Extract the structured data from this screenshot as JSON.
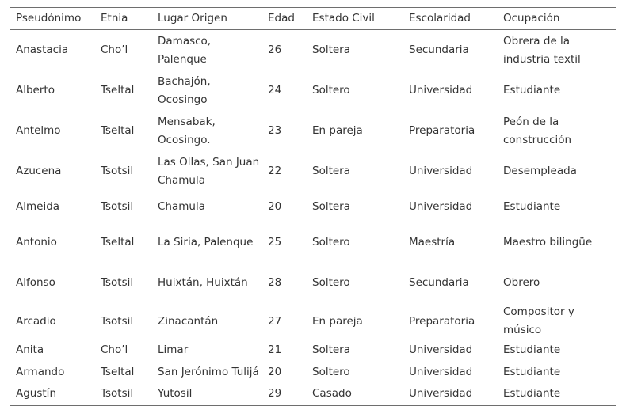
{
  "headers": [
    "Pseudónimo",
    "Etnia",
    "Lugar Origen",
    "Edad",
    "Estado Civil",
    "Escolaridad",
    "Ocupación"
  ],
  "rows": [
    {
      "seudonimo": "Anastacia",
      "etnia": "Cho’l",
      "origen": "Damasco, Palenque",
      "edad": "26",
      "estado": "Soltera",
      "escolaridad": "Secundaria",
      "ocupacion": "Obrera de la industria textil"
    },
    {
      "seudonimo": "Alberto",
      "etnia": "Tseltal",
      "origen": "Bachajón, Ocosingo",
      "edad": "24",
      "estado": "Soltero",
      "escolaridad": "Universidad",
      "ocupacion": "Estudiante"
    },
    {
      "seudonimo": "Antelmo",
      "etnia": "Tseltal",
      "origen": "Mensabak, Ocosingo.",
      "edad": "23",
      "estado": "En pareja",
      "escolaridad": "Preparatoria",
      "ocupacion": "Peón de la construcción"
    },
    {
      "seudonimo": "Azucena",
      "etnia": "Tsotsil",
      "origen": "Las Ollas, San Juan Chamula",
      "edad": "22",
      "estado": "Soltera",
      "escolaridad": "Universidad",
      "ocupacion": "Desempleada"
    },
    {
      "seudonimo": "Almeida",
      "etnia": "Tsotsil",
      "origen": "Chamula",
      "edad": "20",
      "estado": "Soltera",
      "escolaridad": "Universidad",
      "ocupacion": "Estudiante"
    },
    {
      "seudonimo": "Antonio",
      "etnia": "Tseltal",
      "origen": "La Siria, Palenque",
      "edad": "25",
      "estado": "Soltero",
      "escolaridad": "Maestría",
      "ocupacion": "Maestro bilingüe"
    },
    {
      "seudonimo": "Alfonso",
      "etnia": "Tsotsil",
      "origen": "Huixtán, Huixtán",
      "edad": "28",
      "estado": "Soltero",
      "escolaridad": "Secundaria",
      "ocupacion": "Obrero"
    },
    {
      "seudonimo": "Arcadio",
      "etnia": "Tsotsil",
      "origen": "Zinacantán",
      "edad": "27",
      "estado": "En pareja",
      "escolaridad": "Preparatoria",
      "ocupacion": "Compositor y músico"
    },
    {
      "seudonimo": "Anita",
      "etnia": "Cho’l",
      "origen": "Limar",
      "edad": "21",
      "estado": "Soltera",
      "escolaridad": "Universidad",
      "ocupacion": "Estudiante"
    },
    {
      "seudonimo": "Armando",
      "etnia": "Tseltal",
      "origen": "San Jerónimo Tulijá",
      "edad": "20",
      "estado": "Soltero",
      "escolaridad": "Universidad",
      "ocupacion": "Estudiante"
    },
    {
      "seudonimo": "Agustín",
      "etnia": "Tsotsil",
      "origen": "Yutosil",
      "edad": "29",
      "estado": "Casado",
      "escolaridad": "Universidad",
      "ocupacion": "Estudiante"
    }
  ]
}
